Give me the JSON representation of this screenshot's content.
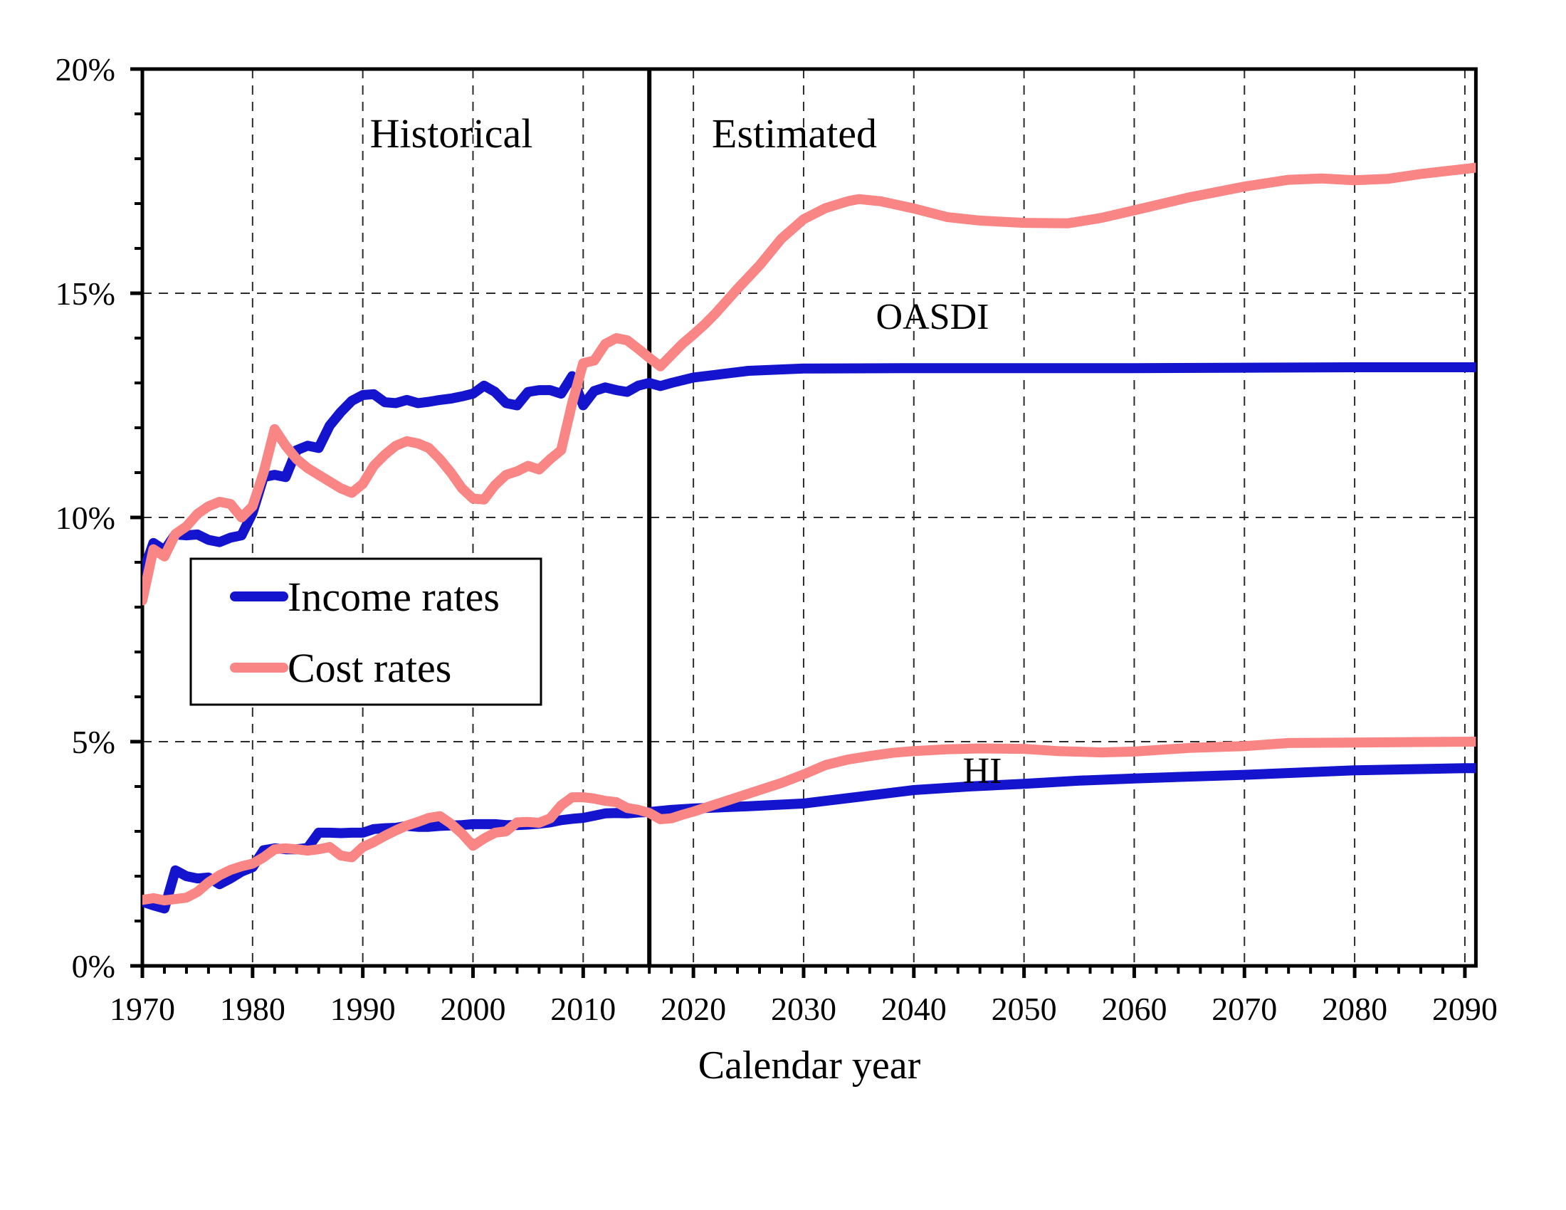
{
  "colors": {
    "income_line": "#1414cf",
    "cost_line": "#f98585",
    "axis": "#000000",
    "grid": "#2b2b2b",
    "divider": "#000000",
    "background": "#ffffff",
    "text": "#000000"
  },
  "labels": {
    "historical": "Historical",
    "estimated": "Estimated",
    "oasdi": "OASDI",
    "hi": "HI",
    "x_axis": "Calendar year"
  },
  "legend": {
    "items": [
      {
        "label": "Income rates",
        "color": "#1414cf"
      },
      {
        "label": "Cost rates",
        "color": "#f98585"
      }
    ]
  },
  "chart_data": {
    "type": "line",
    "title": "",
    "xlabel": "Calendar year",
    "ylabel": "",
    "xlim": [
      1970,
      2091
    ],
    "ylim": [
      0,
      20
    ],
    "divider_year": 2016,
    "x_major_ticks": [
      1970,
      1980,
      1990,
      2000,
      2010,
      2020,
      2030,
      2040,
      2050,
      2060,
      2070,
      2080,
      2090
    ],
    "x_minor_step": 2,
    "y_major_ticks": [
      0,
      5,
      10,
      15,
      20
    ],
    "y_minor_step": 1,
    "y_tick_suffix": "%",
    "x_gridlines": [
      1980,
      1990,
      2000,
      2010,
      2020,
      2030,
      2040,
      2050,
      2060,
      2070,
      2080,
      2090
    ],
    "y_gridlines": [
      5,
      10,
      15
    ],
    "grid_on": true,
    "legend_position": "upper-left-inside",
    "series": [
      {
        "name": "OASDI income rate",
        "color": "#1414cf",
        "role": "income",
        "points": [
          [
            1970,
            8.73
          ],
          [
            1971,
            9.43
          ],
          [
            1972,
            9.27
          ],
          [
            1973,
            9.62
          ],
          [
            1974,
            9.6
          ],
          [
            1975,
            9.62
          ],
          [
            1976,
            9.5
          ],
          [
            1977,
            9.45
          ],
          [
            1978,
            9.55
          ],
          [
            1979,
            9.6
          ],
          [
            1980,
            10.1
          ],
          [
            1981,
            10.9
          ],
          [
            1982,
            10.95
          ],
          [
            1983,
            10.9
          ],
          [
            1984,
            11.5
          ],
          [
            1985,
            11.6
          ],
          [
            1986,
            11.55
          ],
          [
            1987,
            12.05
          ],
          [
            1988,
            12.35
          ],
          [
            1989,
            12.6
          ],
          [
            1990,
            12.73
          ],
          [
            1991,
            12.75
          ],
          [
            1992,
            12.57
          ],
          [
            1993,
            12.55
          ],
          [
            1994,
            12.62
          ],
          [
            1995,
            12.55
          ],
          [
            1996,
            12.58
          ],
          [
            1997,
            12.62
          ],
          [
            1998,
            12.65
          ],
          [
            1999,
            12.7
          ],
          [
            2000,
            12.76
          ],
          [
            2001,
            12.94
          ],
          [
            2002,
            12.8
          ],
          [
            2003,
            12.55
          ],
          [
            2004,
            12.5
          ],
          [
            2005,
            12.8
          ],
          [
            2006,
            12.84
          ],
          [
            2007,
            12.84
          ],
          [
            2008,
            12.76
          ],
          [
            2009,
            13.15
          ],
          [
            2010,
            12.5
          ],
          [
            2011,
            12.82
          ],
          [
            2012,
            12.9
          ],
          [
            2013,
            12.84
          ],
          [
            2014,
            12.8
          ],
          [
            2015,
            12.94
          ],
          [
            2016,
            13.0
          ],
          [
            2017,
            12.93
          ],
          [
            2018,
            13.0
          ],
          [
            2020,
            13.12
          ],
          [
            2022,
            13.18
          ],
          [
            2025,
            13.27
          ],
          [
            2030,
            13.32
          ],
          [
            2040,
            13.33
          ],
          [
            2050,
            13.33
          ],
          [
            2060,
            13.33
          ],
          [
            2070,
            13.34
          ],
          [
            2080,
            13.35
          ],
          [
            2091,
            13.35
          ]
        ]
      },
      {
        "name": "HI income rate",
        "color": "#1414cf",
        "role": "income",
        "points": [
          [
            1970,
            1.43
          ],
          [
            1971,
            1.35
          ],
          [
            1972,
            1.28
          ],
          [
            1973,
            2.13
          ],
          [
            1974,
            2.0
          ],
          [
            1975,
            1.95
          ],
          [
            1976,
            1.97
          ],
          [
            1977,
            1.82
          ],
          [
            1978,
            1.95
          ],
          [
            1979,
            2.1
          ],
          [
            1980,
            2.2
          ],
          [
            1981,
            2.58
          ],
          [
            1982,
            2.62
          ],
          [
            1983,
            2.6
          ],
          [
            1984,
            2.6
          ],
          [
            1985,
            2.63
          ],
          [
            1986,
            2.97
          ],
          [
            1987,
            2.97
          ],
          [
            1988,
            2.96
          ],
          [
            1989,
            2.97
          ],
          [
            1990,
            2.97
          ],
          [
            1991,
            3.05
          ],
          [
            1992,
            3.07
          ],
          [
            1993,
            3.08
          ],
          [
            1994,
            3.12
          ],
          [
            1995,
            3.1
          ],
          [
            1996,
            3.1
          ],
          [
            1997,
            3.12
          ],
          [
            1998,
            3.13
          ],
          [
            1999,
            3.14
          ],
          [
            2000,
            3.16
          ],
          [
            2001,
            3.16
          ],
          [
            2002,
            3.16
          ],
          [
            2003,
            3.14
          ],
          [
            2004,
            3.14
          ],
          [
            2005,
            3.15
          ],
          [
            2006,
            3.17
          ],
          [
            2007,
            3.2
          ],
          [
            2008,
            3.25
          ],
          [
            2009,
            3.28
          ],
          [
            2010,
            3.3
          ],
          [
            2011,
            3.35
          ],
          [
            2012,
            3.4
          ],
          [
            2013,
            3.41
          ],
          [
            2014,
            3.4
          ],
          [
            2015,
            3.42
          ],
          [
            2016,
            3.43
          ],
          [
            2018,
            3.48
          ],
          [
            2020,
            3.51
          ],
          [
            2025,
            3.56
          ],
          [
            2030,
            3.62
          ],
          [
            2035,
            3.77
          ],
          [
            2040,
            3.92
          ],
          [
            2045,
            4.0
          ],
          [
            2050,
            4.06
          ],
          [
            2055,
            4.13
          ],
          [
            2060,
            4.18
          ],
          [
            2070,
            4.26
          ],
          [
            2080,
            4.36
          ],
          [
            2090,
            4.41
          ],
          [
            2091,
            4.41
          ]
        ]
      },
      {
        "name": "OASDI cost rate",
        "color": "#f98585",
        "role": "cost",
        "points": [
          [
            1970,
            8.15
          ],
          [
            1971,
            9.29
          ],
          [
            1972,
            9.13
          ],
          [
            1973,
            9.63
          ],
          [
            1974,
            9.8
          ],
          [
            1975,
            10.08
          ],
          [
            1976,
            10.25
          ],
          [
            1977,
            10.35
          ],
          [
            1978,
            10.3
          ],
          [
            1979,
            10.0
          ],
          [
            1980,
            10.25
          ],
          [
            1981,
            11.0
          ],
          [
            1982,
            11.97
          ],
          [
            1983,
            11.6
          ],
          [
            1984,
            11.3
          ],
          [
            1985,
            11.1
          ],
          [
            1986,
            10.95
          ],
          [
            1987,
            10.8
          ],
          [
            1988,
            10.65
          ],
          [
            1989,
            10.55
          ],
          [
            1990,
            10.75
          ],
          [
            1991,
            11.15
          ],
          [
            1992,
            11.4
          ],
          [
            1993,
            11.6
          ],
          [
            1994,
            11.7
          ],
          [
            1995,
            11.65
          ],
          [
            1996,
            11.55
          ],
          [
            1997,
            11.3
          ],
          [
            1998,
            11.0
          ],
          [
            1999,
            10.65
          ],
          [
            2000,
            10.42
          ],
          [
            2001,
            10.4
          ],
          [
            2002,
            10.72
          ],
          [
            2003,
            10.95
          ],
          [
            2004,
            11.03
          ],
          [
            2005,
            11.15
          ],
          [
            2006,
            11.07
          ],
          [
            2007,
            11.3
          ],
          [
            2008,
            11.5
          ],
          [
            2009,
            12.55
          ],
          [
            2010,
            13.44
          ],
          [
            2011,
            13.5
          ],
          [
            2012,
            13.87
          ],
          [
            2013,
            14.0
          ],
          [
            2014,
            13.95
          ],
          [
            2015,
            13.76
          ],
          [
            2016,
            13.56
          ],
          [
            2017,
            13.37
          ],
          [
            2018,
            13.62
          ],
          [
            2019,
            13.87
          ],
          [
            2020,
            14.08
          ],
          [
            2021,
            14.3
          ],
          [
            2022,
            14.55
          ],
          [
            2024,
            15.1
          ],
          [
            2026,
            15.62
          ],
          [
            2028,
            16.22
          ],
          [
            2030,
            16.65
          ],
          [
            2032,
            16.9
          ],
          [
            2034,
            17.05
          ],
          [
            2035,
            17.1
          ],
          [
            2037,
            17.05
          ],
          [
            2040,
            16.89
          ],
          [
            2043,
            16.7
          ],
          [
            2046,
            16.62
          ],
          [
            2050,
            16.57
          ],
          [
            2054,
            16.56
          ],
          [
            2057,
            16.68
          ],
          [
            2060,
            16.85
          ],
          [
            2065,
            17.14
          ],
          [
            2070,
            17.38
          ],
          [
            2074,
            17.53
          ],
          [
            2077,
            17.56
          ],
          [
            2080,
            17.52
          ],
          [
            2083,
            17.55
          ],
          [
            2086,
            17.66
          ],
          [
            2091,
            17.8
          ]
        ]
      },
      {
        "name": "HI cost rate",
        "color": "#f98585",
        "role": "cost",
        "points": [
          [
            1970,
            1.47
          ],
          [
            1971,
            1.51
          ],
          [
            1972,
            1.46
          ],
          [
            1973,
            1.49
          ],
          [
            1974,
            1.52
          ],
          [
            1975,
            1.65
          ],
          [
            1976,
            1.86
          ],
          [
            1977,
            2.02
          ],
          [
            1978,
            2.14
          ],
          [
            1979,
            2.22
          ],
          [
            1980,
            2.28
          ],
          [
            1981,
            2.42
          ],
          [
            1982,
            2.6
          ],
          [
            1983,
            2.62
          ],
          [
            1984,
            2.6
          ],
          [
            1985,
            2.57
          ],
          [
            1986,
            2.6
          ],
          [
            1987,
            2.65
          ],
          [
            1988,
            2.46
          ],
          [
            1989,
            2.42
          ],
          [
            1990,
            2.65
          ],
          [
            1991,
            2.76
          ],
          [
            1992,
            2.9
          ],
          [
            1993,
            3.02
          ],
          [
            1994,
            3.13
          ],
          [
            1995,
            3.21
          ],
          [
            1996,
            3.3
          ],
          [
            1997,
            3.34
          ],
          [
            1998,
            3.17
          ],
          [
            1999,
            2.95
          ],
          [
            2000,
            2.68
          ],
          [
            2001,
            2.84
          ],
          [
            2002,
            2.97
          ],
          [
            2003,
            3.0
          ],
          [
            2004,
            3.2
          ],
          [
            2005,
            3.21
          ],
          [
            2006,
            3.19
          ],
          [
            2007,
            3.29
          ],
          [
            2008,
            3.58
          ],
          [
            2009,
            3.76
          ],
          [
            2010,
            3.76
          ],
          [
            2011,
            3.73
          ],
          [
            2012,
            3.68
          ],
          [
            2013,
            3.65
          ],
          [
            2014,
            3.52
          ],
          [
            2015,
            3.48
          ],
          [
            2016,
            3.41
          ],
          [
            2017,
            3.27
          ],
          [
            2018,
            3.29
          ],
          [
            2019,
            3.37
          ],
          [
            2020,
            3.44
          ],
          [
            2022,
            3.6
          ],
          [
            2024,
            3.76
          ],
          [
            2026,
            3.92
          ],
          [
            2028,
            4.08
          ],
          [
            2030,
            4.27
          ],
          [
            2032,
            4.48
          ],
          [
            2034,
            4.6
          ],
          [
            2036,
            4.68
          ],
          [
            2038,
            4.75
          ],
          [
            2040,
            4.79
          ],
          [
            2043,
            4.83
          ],
          [
            2046,
            4.85
          ],
          [
            2050,
            4.84
          ],
          [
            2053,
            4.79
          ],
          [
            2057,
            4.76
          ],
          [
            2060,
            4.78
          ],
          [
            2065,
            4.86
          ],
          [
            2070,
            4.9
          ],
          [
            2074,
            4.97
          ],
          [
            2080,
            4.98
          ],
          [
            2085,
            4.99
          ],
          [
            2091,
            5.0
          ]
        ]
      }
    ]
  }
}
